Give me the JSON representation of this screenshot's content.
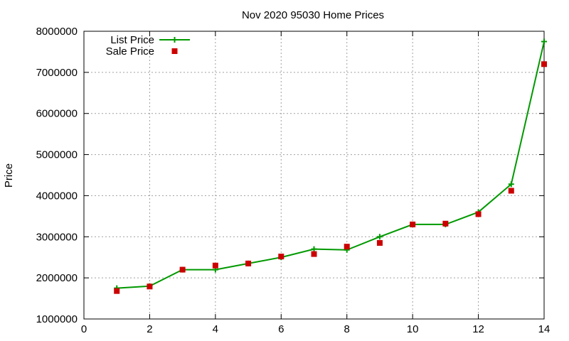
{
  "chart_data": {
    "type": "line",
    "title": "Nov 2020 95030 Home Prices",
    "xlabel": "",
    "ylabel": "Price",
    "xlim": [
      0,
      14
    ],
    "ylim": [
      1000000,
      8000000
    ],
    "xticks": [
      0,
      2,
      4,
      6,
      8,
      10,
      12,
      14
    ],
    "xtick_labels": [
      "0",
      "2",
      "4",
      "6",
      "8",
      "10",
      "12",
      "14"
    ],
    "yticks": [
      1000000,
      2000000,
      3000000,
      4000000,
      5000000,
      6000000,
      7000000,
      8000000
    ],
    "ytick_labels": [
      "1000000",
      "2000000",
      "3000000",
      "4000000",
      "5000000",
      "6000000",
      "7000000",
      "8000000"
    ],
    "grid": true,
    "legend_position": "top-left",
    "series": [
      {
        "name": "List Price",
        "style": "line-plus",
        "color": "#009900",
        "x": [
          1,
          2,
          3,
          4,
          5,
          6,
          7,
          8,
          9,
          10,
          11,
          12,
          13,
          14
        ],
        "y": [
          1750000,
          1800000,
          2200000,
          2200000,
          2350000,
          2500000,
          2700000,
          2680000,
          3000000,
          3300000,
          3300000,
          3600000,
          4280000,
          7750000
        ]
      },
      {
        "name": "Sale Price",
        "style": "square-points",
        "color": "#cc0000",
        "x": [
          1,
          2,
          3,
          4,
          5,
          6,
          7,
          8,
          9,
          10,
          11,
          12,
          13,
          14
        ],
        "y": [
          1680000,
          1790000,
          2200000,
          2300000,
          2350000,
          2520000,
          2580000,
          2760000,
          2850000,
          3300000,
          3320000,
          3550000,
          4120000,
          7200000
        ]
      }
    ]
  }
}
